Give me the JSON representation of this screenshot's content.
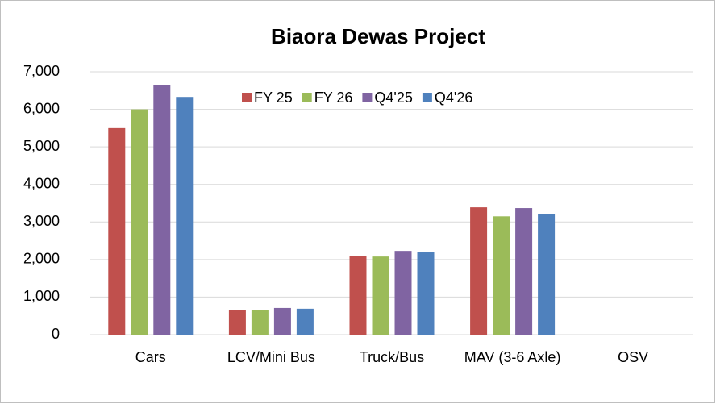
{
  "chart_data": {
    "type": "bar",
    "title": "Biaora Dewas Project",
    "categories": [
      "Cars",
      "LCV/Mini Bus",
      "Truck/Bus",
      "MAV (3-6 Axle)",
      "OSV"
    ],
    "series": [
      {
        "name": "FY 25",
        "color": "#c0504d",
        "values": [
          5500,
          665,
          2100,
          3390,
          0
        ]
      },
      {
        "name": "FY 26",
        "color": "#9bbb59",
        "values": [
          6000,
          645,
          2080,
          3150,
          0
        ]
      },
      {
        "name": "Q4'25",
        "color": "#8064a2",
        "values": [
          6650,
          710,
          2230,
          3370,
          0
        ]
      },
      {
        "name": "Q4'26",
        "color": "#4f81bd",
        "values": [
          6330,
          690,
          2190,
          3200,
          0
        ]
      }
    ],
    "ylim": [
      0,
      7000
    ],
    "yticks": [
      0,
      {
        "value": 1000,
        "label": "1,000"
      },
      {
        "value": 2000,
        "label": "2,000"
      },
      {
        "value": 3000,
        "label": "3,000"
      },
      {
        "value": 4000,
        "label": "4,000"
      },
      {
        "value": 5000,
        "label": "5,000"
      },
      {
        "value": 6000,
        "label": "6,000"
      },
      {
        "value": 7000,
        "label": "7,000"
      }
    ],
    "grid": true,
    "legend": "top"
  }
}
